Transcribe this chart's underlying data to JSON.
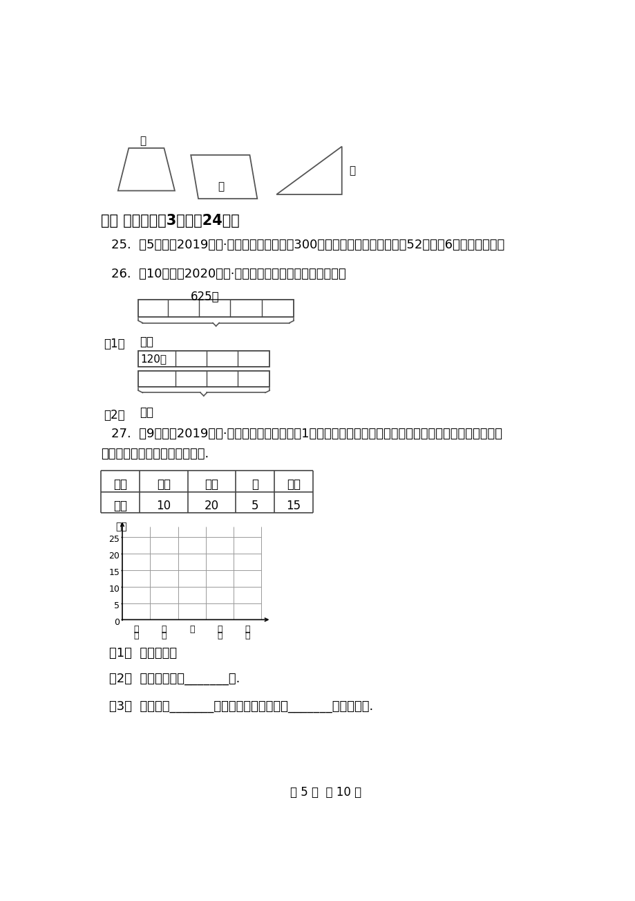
{
  "bg_color": "#ffffff",
  "title_section6": "六、 解答题（共3题；共24分）",
  "q25": "25.  （5分）（2019三上·新会月考）一篇文章300字，小丁叔叔平均每分钟打52个字，6分钟能打完吗？",
  "q26_intro": "26.  （10分）（2020三下·惠阳期末）看图列综合算式计算。",
  "q26_label1": "625个",
  "q26_1_label": "（1）",
  "q26_q_label1": "？个",
  "q26_120": "120元",
  "q26_2_label": "（2）",
  "q26_q_label2": "？元",
  "q27_intro": "27.  （9分）（2019四上·西工期末）下面是四（1）班学生最喜欢吃的水果情况统计表，请你根据统计表完成",
  "q27_intro2": "下面的条形统计图，并回答问题.",
  "table_headers": [
    "种类",
    "苹果",
    "草莓",
    "梨",
    "柚子"
  ],
  "table_row1": [
    "人数",
    "10",
    "20",
    "5",
    "15"
  ],
  "chart_ylabel": "人数",
  "chart_yticks": [
    0,
    5,
    10,
    15,
    20,
    25
  ],
  "chart_xlabels": [
    "苹\n果",
    "草\n莓",
    "梨",
    "柚\n子",
    "种\n类"
  ],
  "q27_1": "（1）  补全统计图",
  "q27_2": "（2）  图中每格代表_______人.",
  "q27_3": "（3）  最喜欢吃_______的人数最多，最喜欢吃_______的人数最少.",
  "page_footer": "第 5 页  共 10 页"
}
